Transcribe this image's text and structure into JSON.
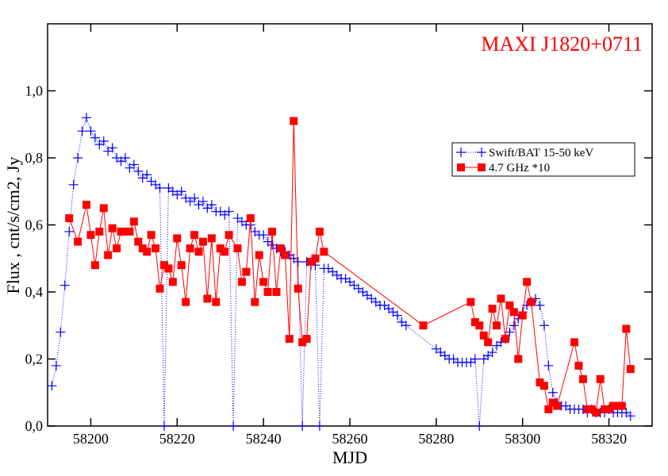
{
  "chart_data": {
    "type": "scatter-line",
    "title": "MAXI J1820+0711",
    "xlabel": "MJD",
    "ylabel": "Flux , cnt/s/cm2,  Jy",
    "xlim": [
      58190,
      58330
    ],
    "xticks": [
      58200,
      58220,
      58240,
      58260,
      58280,
      58300,
      58320
    ],
    "ylim": [
      0,
      1.2
    ],
    "yticks": [
      {
        "value": 0,
        "label": "0,0"
      },
      {
        "value": 0.2,
        "label": "0,2"
      },
      {
        "value": 0.4,
        "label": "0,4"
      },
      {
        "value": 0.6,
        "label": "0,6"
      },
      {
        "value": 0.8,
        "label": "0,8"
      },
      {
        "value": 1.0,
        "label": "1,0"
      }
    ],
    "series": [
      {
        "name": "Swift/BAT 15-50 keV",
        "color": "#0000ff",
        "marker": "plus",
        "x": [
          58191,
          58192,
          58193,
          58194,
          58195,
          58196,
          58197,
          58198,
          58199,
          58200,
          58201,
          58202,
          58203,
          58204,
          58205,
          58206,
          58207,
          58208,
          58209,
          58210,
          58211,
          58212,
          58213,
          58214,
          58215,
          58216,
          58217,
          58218,
          58219,
          58220,
          58221,
          58222,
          58223,
          58224,
          58225,
          58226,
          58227,
          58228,
          58229,
          58230,
          58231,
          58232,
          58233,
          58234,
          58235,
          58236,
          58237,
          58238,
          58239,
          58240,
          58241,
          58242,
          58243,
          58244,
          58245,
          58246,
          58247,
          58248,
          58249,
          58250,
          58251,
          58252,
          58253,
          58254,
          58255,
          58256,
          58257,
          58258,
          58259,
          58260,
          58261,
          58262,
          58263,
          58264,
          58265,
          58266,
          58267,
          58268,
          58269,
          58270,
          58271,
          58272,
          58273,
          58280,
          58281,
          58282,
          58283,
          58284,
          58285,
          58286,
          58287,
          58288,
          58289,
          58290,
          58291,
          58292,
          58293,
          58294,
          58295,
          58296,
          58297,
          58298,
          58299,
          58300,
          58301,
          58302,
          58303,
          58304,
          58305,
          58306,
          58307,
          58308,
          58309,
          58310,
          58311,
          58312,
          58313,
          58314,
          58315,
          58316,
          58317,
          58318,
          58319,
          58320,
          58321,
          58322,
          58323,
          58324,
          58325
        ],
        "values": [
          0.12,
          0.18,
          0.28,
          0.42,
          0.58,
          0.72,
          0.8,
          0.88,
          0.92,
          0.88,
          0.86,
          0.84,
          0.85,
          0.82,
          0.83,
          0.8,
          0.79,
          0.8,
          0.77,
          0.78,
          0.76,
          0.74,
          0.75,
          0.73,
          0.72,
          0.71,
          0.0,
          0.71,
          0.7,
          0.69,
          0.7,
          0.68,
          0.67,
          0.68,
          0.66,
          0.67,
          0.65,
          0.66,
          0.64,
          0.64,
          0.63,
          0.64,
          0.0,
          0.62,
          0.61,
          0.6,
          0.6,
          0.58,
          0.57,
          0.57,
          0.55,
          0.54,
          0.53,
          0.52,
          0.52,
          0.51,
          0.5,
          0.49,
          0.0,
          0.49,
          0.48,
          0.48,
          0.0,
          0.47,
          0.47,
          0.46,
          0.45,
          0.44,
          0.44,
          0.43,
          0.42,
          0.41,
          0.4,
          0.39,
          0.38,
          0.37,
          0.36,
          0.36,
          0.35,
          0.34,
          0.33,
          0.31,
          0.3,
          0.23,
          0.22,
          0.21,
          0.2,
          0.2,
          0.19,
          0.19,
          0.19,
          0.19,
          0.2,
          0.0,
          0.2,
          0.21,
          0.22,
          0.24,
          0.25,
          0.26,
          0.28,
          0.3,
          0.32,
          0.34,
          0.36,
          0.37,
          0.38,
          0.36,
          0.3,
          0.18,
          0.1,
          0.07,
          0.06,
          0.06,
          0.05,
          0.05,
          0.05,
          0.05,
          0.04,
          0.05,
          0.04,
          0.04,
          0.04,
          0.05,
          0.04,
          0.04,
          0.04,
          0.04,
          0.03
        ]
      },
      {
        "name": "4.7 GHz *10",
        "color": "#ff0000",
        "marker": "square",
        "x": [
          58195,
          58197,
          58199,
          58200,
          58201,
          58202,
          58203,
          58204,
          58205,
          58206,
          58207,
          58208,
          58209,
          58210,
          58211,
          58212,
          58213,
          58214,
          58215,
          58216,
          58217,
          58218,
          58219,
          58220,
          58221,
          58222,
          58223,
          58224,
          58225,
          58226,
          58227,
          58228,
          58229,
          58230,
          58231,
          58232,
          58234,
          58235,
          58236,
          58237,
          58238,
          58239,
          58240,
          58241,
          58242,
          58243,
          58244,
          58245,
          58246,
          58247,
          58248,
          58249,
          58250,
          58251,
          58252,
          58253,
          58254,
          58277,
          58288,
          58289,
          58290,
          58291,
          58292,
          58293,
          58294,
          58295,
          58296,
          58297,
          58298,
          58299,
          58300,
          58301,
          58302,
          58304,
          58305,
          58306,
          58307,
          58308,
          58312,
          58313,
          58314,
          58315,
          58316,
          58317,
          58318,
          58319,
          58320,
          58321,
          58322,
          58323,
          58324,
          58325
        ],
        "values": [
          0.62,
          0.55,
          0.66,
          0.57,
          0.48,
          0.58,
          0.65,
          0.51,
          0.59,
          0.53,
          0.58,
          0.58,
          0.58,
          0.61,
          0.55,
          0.53,
          0.52,
          0.57,
          0.53,
          0.41,
          0.48,
          0.47,
          0.43,
          0.56,
          0.48,
          0.37,
          0.53,
          0.57,
          0.52,
          0.55,
          0.38,
          0.56,
          0.37,
          0.53,
          0.52,
          0.57,
          0.53,
          0.43,
          0.46,
          0.62,
          0.37,
          0.51,
          0.43,
          0.4,
          0.58,
          0.4,
          0.53,
          0.51,
          0.26,
          0.91,
          0.41,
          0.25,
          0.26,
          0.49,
          0.5,
          0.58,
          0.52,
          0.3,
          0.37,
          0.31,
          0.3,
          0.27,
          0.25,
          0.35,
          0.3,
          0.38,
          0.26,
          0.36,
          0.34,
          0.2,
          0.33,
          0.43,
          0.37,
          0.13,
          0.12,
          0.05,
          0.07,
          0.06,
          0.25,
          0.18,
          0.14,
          0.05,
          0.05,
          0.04,
          0.14,
          0.05,
          0.05,
          0.06,
          0.06,
          0.06,
          0.29,
          0.17
        ]
      }
    ]
  }
}
